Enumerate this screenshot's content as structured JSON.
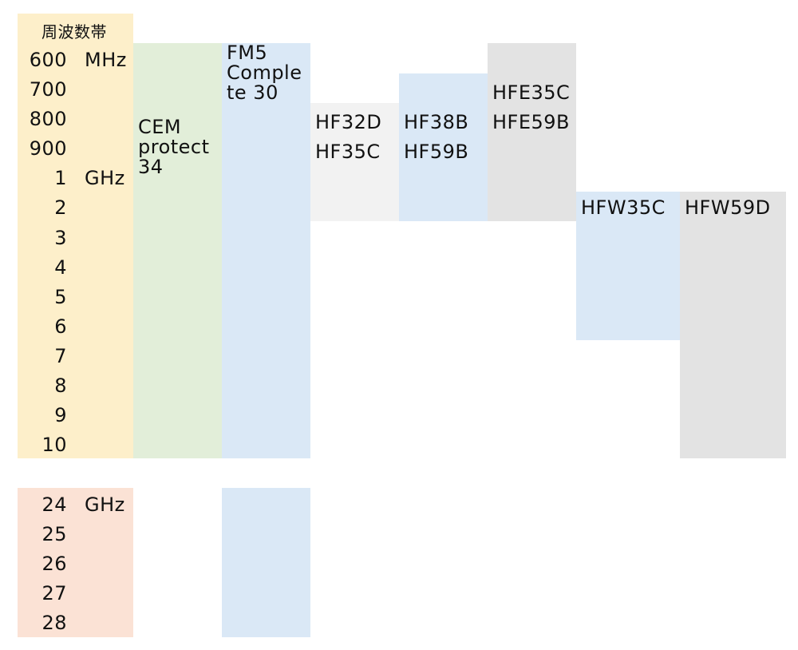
{
  "chart_data": {
    "type": "table",
    "header": "周波数帯",
    "frequency_rows": [
      {
        "value": "600",
        "unit": "MHz"
      },
      {
        "value": "700",
        "unit": ""
      },
      {
        "value": "800",
        "unit": ""
      },
      {
        "value": "900",
        "unit": ""
      },
      {
        "value": "1",
        "unit": "GHz"
      },
      {
        "value": "2",
        "unit": ""
      },
      {
        "value": "3",
        "unit": ""
      },
      {
        "value": "4",
        "unit": ""
      },
      {
        "value": "5",
        "unit": ""
      },
      {
        "value": "6",
        "unit": ""
      },
      {
        "value": "7",
        "unit": ""
      },
      {
        "value": "8",
        "unit": ""
      },
      {
        "value": "9",
        "unit": ""
      },
      {
        "value": "10",
        "unit": ""
      }
    ],
    "high_rows": [
      {
        "value": "24",
        "unit": "GHz"
      },
      {
        "value": "25",
        "unit": ""
      },
      {
        "value": "26",
        "unit": ""
      },
      {
        "value": "27",
        "unit": ""
      },
      {
        "value": "28",
        "unit": ""
      }
    ],
    "products": [
      {
        "label": "CEM\nprotect\n34",
        "from": "600 MHz",
        "to": "10 GHz",
        "color": "#e2eed9"
      },
      {
        "label": "FM5\nComple\nte 30",
        "from": "600 MHz",
        "to": "28 GHz",
        "color": "#dae8f6",
        "note": "covers 600 MHz–10 GHz and 24–28 GHz"
      },
      {
        "label": "HF32D\nHF35C",
        "from": "800 MHz",
        "to": "2 GHz",
        "color": "#f2f2f2"
      },
      {
        "label": "HF38B\nHF59B",
        "from": "700 MHz",
        "to": "2 GHz",
        "color": "#dae8f6"
      },
      {
        "label": "HFE35C\nHFE59B",
        "from": "600 MHz",
        "to": "2 GHz",
        "color": "#e3e3e3"
      },
      {
        "label": "HFW35C",
        "from": "2 GHz",
        "to": "6 GHz",
        "color": "#dae8f6"
      },
      {
        "label": "HFW59D",
        "from": "2 GHz",
        "to": "10 GHz",
        "color": "#e3e3e3"
      }
    ],
    "colors": {
      "frequency_band_low": "#fdefca",
      "frequency_band_high": "#fbe2d5"
    }
  }
}
